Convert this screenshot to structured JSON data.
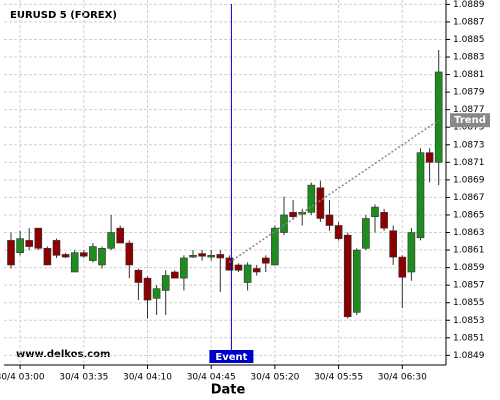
{
  "chart_data": {
    "type": "candlestick",
    "title": "EURUSD 5 (FOREX)",
    "watermark": "www.delkos.com",
    "x_label": "Date",
    "categories": [
      null,
      "30/4 03:00",
      null,
      null,
      null,
      null,
      null,
      null,
      "30/4 03:35",
      null,
      null,
      null,
      null,
      null,
      null,
      "30/4 04:10",
      null,
      null,
      null,
      null,
      null,
      null,
      "30/4 04:45",
      null,
      null,
      null,
      null,
      null,
      null,
      "30/4 05:20",
      null,
      null,
      null,
      null,
      null,
      null,
      "30/4 05:55",
      null,
      null,
      null,
      null,
      null,
      null,
      "30/4 06:30",
      null,
      null,
      null,
      null
    ],
    "open": [
      1.08621,
      1.08607,
      1.08621,
      1.08635,
      1.08612,
      1.08621,
      1.08605,
      1.08585,
      1.08607,
      1.08598,
      1.08593,
      1.08612,
      1.08635,
      1.08618,
      1.08587,
      1.08578,
      1.08555,
      1.08564,
      1.08585,
      1.08578,
      1.08602,
      1.08606,
      1.08602,
      1.08605,
      1.08601,
      1.08593,
      1.08573,
      1.08589,
      1.08601,
      1.08593,
      1.0863,
      1.08653,
      1.08651,
      1.08653,
      1.08681,
      1.0865,
      1.08638,
      1.08627,
      1.08539,
      1.08612,
      1.08648,
      1.08653,
      1.08632,
      1.08602,
      1.08585,
      1.08624,
      1.08721,
      1.0871
    ],
    "high": [
      1.0863,
      1.08632,
      1.08635,
      1.08635,
      1.08614,
      1.08623,
      1.08607,
      1.0861,
      1.0861,
      1.08618,
      1.08614,
      1.0865,
      1.08638,
      1.08621,
      1.08589,
      1.0858,
      1.0857,
      1.08587,
      1.08587,
      1.08604,
      1.0861,
      1.0861,
      1.0861,
      1.0861,
      1.08604,
      1.08595,
      1.08596,
      1.08593,
      1.08604,
      1.08638,
      1.08671,
      1.08667,
      1.08657,
      1.08687,
      1.08689,
      1.08667,
      1.08642,
      1.0863,
      1.08612,
      1.0865,
      1.08662,
      1.08657,
      1.08638,
      1.08604,
      1.08635,
      1.08726,
      1.08726,
      1.08838
    ],
    "low": [
      1.08589,
      1.08604,
      1.0861,
      1.0861,
      1.08593,
      1.08601,
      1.08601,
      1.08585,
      1.08601,
      1.08596,
      1.08589,
      1.0861,
      1.08618,
      1.08578,
      1.08553,
      1.08532,
      1.08536,
      1.08536,
      1.08578,
      1.08564,
      1.08601,
      1.08598,
      1.08598,
      1.08562,
      1.08587,
      1.08585,
      1.08564,
      1.08581,
      1.08585,
      1.08593,
      1.08627,
      1.08646,
      1.08638,
      1.0865,
      1.08642,
      1.08632,
      1.08621,
      1.08532,
      1.08536,
      1.0861,
      1.0863,
      1.08632,
      1.08593,
      1.08544,
      1.08575,
      1.08621,
      1.08687,
      1.08684
    ],
    "close": [
      1.08593,
      1.08623,
      1.08614,
      1.08612,
      1.08593,
      1.08604,
      1.08602,
      1.08607,
      1.08603,
      1.08614,
      1.08612,
      1.0863,
      1.08618,
      1.08593,
      1.08573,
      1.08553,
      1.08566,
      1.08581,
      1.08578,
      1.08601,
      1.08604,
      1.08603,
      1.08604,
      1.08601,
      1.08587,
      1.08587,
      1.08593,
      1.08585,
      1.08595,
      1.08635,
      1.0865,
      1.08648,
      1.08653,
      1.08684,
      1.08646,
      1.08638,
      1.08623,
      1.08534,
      1.0861,
      1.08646,
      1.08659,
      1.08635,
      1.08602,
      1.08579,
      1.0863,
      1.08721,
      1.0871,
      1.08813
    ],
    "up_color": "#1e8c1e",
    "down_color": "#8b0000",
    "ylim": [
      1.08479,
      1.08895
    ],
    "yticks": [
      1.0849,
      1.0851,
      1.0853,
      1.0855,
      1.0857,
      1.0859,
      1.0861,
      1.0863,
      1.0865,
      1.0867,
      1.0869,
      1.0871,
      1.0873,
      1.0875,
      1.0877,
      1.0879,
      1.0881,
      1.0883,
      1.0885,
      1.0887,
      1.0889
    ],
    "grid": true,
    "event": {
      "label": "Event",
      "index": 24,
      "color": "#0000cc"
    },
    "trend": {
      "label": "Trend",
      "x": [
        24,
        47
      ],
      "values": [
        1.08596,
        1.08758
      ],
      "color": "#888888"
    }
  }
}
